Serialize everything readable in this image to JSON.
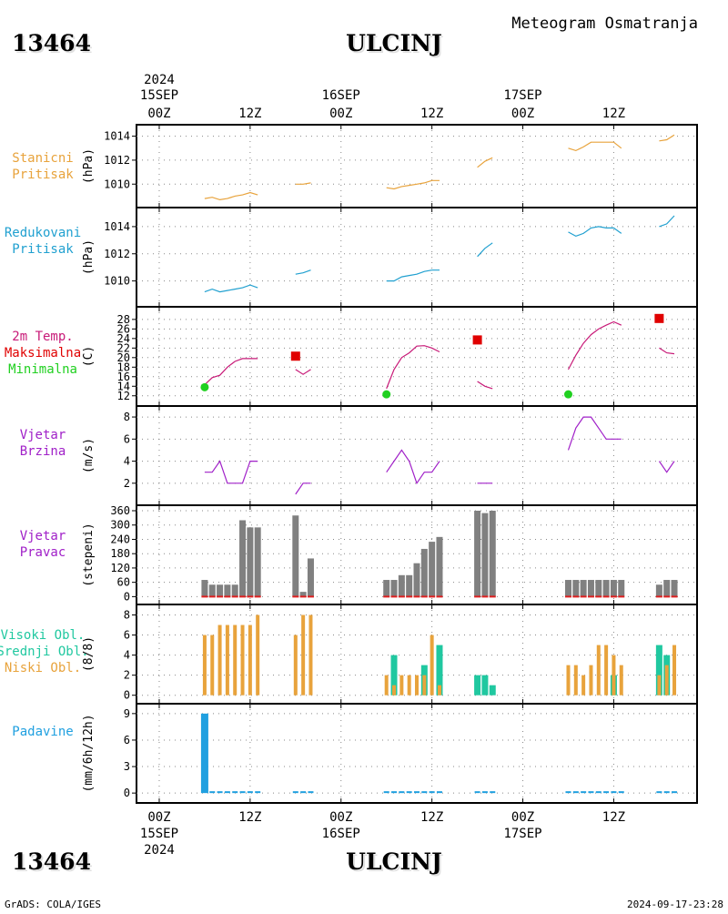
{
  "header": {
    "station_id": "13464",
    "station_name": "ULCINJ",
    "product": "Meteogram Osmatranja"
  },
  "footer": {
    "station_id": "13464",
    "station_name": "ULCINJ",
    "credit": "GrADS: COLA/IGES",
    "generated": "2024-09-17-23:28"
  },
  "time_axis": {
    "year": "2024",
    "ticks": [
      {
        "hour": 0,
        "label": "00Z",
        "date": "15SEP",
        "year": "2024"
      },
      {
        "hour": 12,
        "label": "12Z"
      },
      {
        "hour": 24,
        "label": "00Z",
        "date": "16SEP"
      },
      {
        "hour": 36,
        "label": "12Z"
      },
      {
        "hour": 48,
        "label": "00Z",
        "date": "17SEP"
      },
      {
        "hour": 60,
        "label": "12Z"
      }
    ],
    "range_hours": [
      -3,
      71
    ]
  },
  "colors": {
    "station_pressure": "#e8a33c",
    "reduced_pressure": "#20a0d0",
    "temperature": "#c81a78",
    "tmax": "#e00000",
    "tmin": "#20d020",
    "wind_speed": "#a020c8",
    "wind_dir_bar": "#808080",
    "wind_dir_base": "#e02020",
    "cloud_high": "#20c8a0",
    "cloud_mid": "#20c8a0",
    "cloud_low": "#e8a33c",
    "precip": "#20a0e0"
  },
  "chart_data": [
    {
      "id": "station_pressure",
      "type": "line",
      "label_lines": [
        "Stanicni",
        "Pritisak"
      ],
      "ylabel": "(hPa)",
      "ylim": [
        1008.5,
        1014.5
      ],
      "yticks": [
        1010,
        1012,
        1014
      ],
      "series": [
        {
          "segments": [
            [
              [
                6,
                1008.8
              ],
              [
                7,
                1008.9
              ],
              [
                8,
                1008.7
              ],
              [
                9,
                1008.8
              ],
              [
                10,
                1009.0
              ],
              [
                11,
                1009.1
              ],
              [
                12,
                1009.3
              ],
              [
                13,
                1009.1
              ]
            ],
            [
              [
                18,
                1010.0
              ],
              [
                19,
                1010.0
              ],
              [
                20,
                1010.1
              ]
            ],
            [
              [
                30,
                1009.7
              ],
              [
                31,
                1009.6
              ],
              [
                32,
                1009.8
              ],
              [
                33,
                1009.9
              ],
              [
                34,
                1010.0
              ],
              [
                35,
                1010.1
              ],
              [
                36,
                1010.3
              ],
              [
                37,
                1010.3
              ]
            ],
            [
              [
                42,
                1011.4
              ],
              [
                43,
                1011.9
              ],
              [
                44,
                1012.2
              ]
            ],
            [
              [
                54,
                1013.0
              ],
              [
                55,
                1012.8
              ],
              [
                56,
                1013.1
              ],
              [
                57,
                1013.5
              ],
              [
                58,
                1013.5
              ],
              [
                59,
                1013.5
              ],
              [
                60,
                1013.5
              ],
              [
                61,
                1013.0
              ]
            ],
            [
              [
                66,
                1013.6
              ],
              [
                67,
                1013.7
              ],
              [
                68,
                1014.1
              ]
            ]
          ]
        }
      ]
    },
    {
      "id": "reduced_pressure",
      "type": "line",
      "label_lines": [
        "Redukovani",
        "Pritisak"
      ],
      "ylabel": "(hPa)",
      "ylim": [
        1008.5,
        1015.0
      ],
      "yticks": [
        1010,
        1012,
        1014
      ],
      "series": [
        {
          "segments": [
            [
              [
                6,
                1009.2
              ],
              [
                7,
                1009.4
              ],
              [
                8,
                1009.2
              ],
              [
                9,
                1009.3
              ],
              [
                10,
                1009.4
              ],
              [
                11,
                1009.5
              ],
              [
                12,
                1009.7
              ],
              [
                13,
                1009.5
              ]
            ],
            [
              [
                18,
                1010.5
              ],
              [
                19,
                1010.6
              ],
              [
                20,
                1010.8
              ]
            ],
            [
              [
                30,
                1010.0
              ],
              [
                31,
                1010.0
              ],
              [
                32,
                1010.3
              ],
              [
                33,
                1010.4
              ],
              [
                34,
                1010.5
              ],
              [
                35,
                1010.7
              ],
              [
                36,
                1010.8
              ],
              [
                37,
                1010.8
              ]
            ],
            [
              [
                42,
                1011.8
              ],
              [
                43,
                1012.4
              ],
              [
                44,
                1012.8
              ]
            ],
            [
              [
                54,
                1013.6
              ],
              [
                55,
                1013.3
              ],
              [
                56,
                1013.5
              ],
              [
                57,
                1013.9
              ],
              [
                58,
                1014.0
              ],
              [
                59,
                1013.9
              ],
              [
                60,
                1013.9
              ],
              [
                61,
                1013.5
              ]
            ],
            [
              [
                66,
                1014.0
              ],
              [
                67,
                1014.2
              ],
              [
                68,
                1014.8
              ]
            ]
          ]
        }
      ]
    },
    {
      "id": "temperature",
      "type": "line",
      "label_lines": [
        "2m Temp.",
        "Maksimalna",
        "Minimalna"
      ],
      "ylabel": "(C)",
      "ylim": [
        11.0,
        29.5
      ],
      "yticks": [
        12,
        14,
        16,
        18,
        20,
        22,
        24,
        26,
        28
      ],
      "series": [
        {
          "segments": [
            [
              [
                6,
                14.3
              ],
              [
                7,
                15.8
              ],
              [
                8,
                16.3
              ],
              [
                9,
                18.0
              ],
              [
                10,
                19.2
              ],
              [
                11,
                19.8
              ],
              [
                12,
                19.8
              ],
              [
                13,
                19.8
              ]
            ],
            [
              [
                18,
                17.5
              ],
              [
                19,
                16.5
              ],
              [
                20,
                17.5
              ]
            ],
            [
              [
                30,
                13.5
              ],
              [
                31,
                17.5
              ],
              [
                32,
                20.0
              ],
              [
                33,
                21.0
              ],
              [
                34,
                22.4
              ],
              [
                35,
                22.5
              ],
              [
                36,
                22.0
              ],
              [
                37,
                21.2
              ]
            ],
            [
              [
                42,
                15.0
              ],
              [
                43,
                14.0
              ],
              [
                44,
                13.5
              ]
            ],
            [
              [
                54,
                17.5
              ],
              [
                55,
                20.5
              ],
              [
                56,
                23.0
              ],
              [
                57,
                24.8
              ],
              [
                58,
                26.0
              ],
              [
                59,
                26.8
              ],
              [
                60,
                27.5
              ],
              [
                61,
                26.8
              ]
            ],
            [
              [
                66,
                22.0
              ],
              [
                67,
                21.0
              ],
              [
                68,
                20.8
              ]
            ]
          ]
        }
      ],
      "tmax": [
        [
          18,
          20.3
        ],
        [
          42,
          23.7
        ],
        [
          66,
          28.2
        ]
      ],
      "tmin": [
        [
          6,
          13.8
        ],
        [
          30,
          12.3
        ],
        [
          54,
          12.3
        ]
      ]
    },
    {
      "id": "wind_speed",
      "type": "line",
      "label_lines": [
        "Vjetar",
        "Brzina"
      ],
      "ylabel": "(m/s)",
      "ylim": [
        0.5,
        8.5
      ],
      "yticks": [
        2,
        4,
        6,
        8
      ],
      "series": [
        {
          "segments": [
            [
              [
                6,
                3
              ],
              [
                7,
                3
              ],
              [
                8,
                4
              ],
              [
                9,
                2
              ],
              [
                10,
                2
              ],
              [
                11,
                2
              ],
              [
                12,
                4
              ],
              [
                13,
                4
              ]
            ],
            [
              [
                18,
                1
              ],
              [
                19,
                2
              ],
              [
                20,
                2
              ]
            ],
            [
              [
                30,
                3
              ],
              [
                31,
                4
              ],
              [
                32,
                5
              ],
              [
                33,
                4
              ],
              [
                34,
                2
              ],
              [
                35,
                3
              ],
              [
                36,
                3
              ],
              [
                37,
                4
              ]
            ],
            [
              [
                42,
                2
              ],
              [
                43,
                2
              ],
              [
                44,
                2
              ]
            ],
            [
              [
                54,
                5
              ],
              [
                55,
                7
              ],
              [
                56,
                8
              ],
              [
                57,
                8
              ],
              [
                58,
                7
              ],
              [
                59,
                6
              ],
              [
                60,
                6
              ],
              [
                61,
                6
              ]
            ],
            [
              [
                66,
                4
              ],
              [
                67,
                3
              ],
              [
                68,
                4
              ]
            ]
          ]
        }
      ]
    },
    {
      "id": "wind_direction",
      "type": "bar",
      "label_lines": [
        "Vjetar",
        "Pravac"
      ],
      "ylabel": "(stepeni)",
      "ylim": [
        -10,
        360
      ],
      "yticks": [
        0,
        60,
        120,
        180,
        240,
        300,
        360
      ],
      "hours": [
        6,
        7,
        8,
        9,
        10,
        11,
        12,
        13,
        18,
        19,
        20,
        30,
        31,
        32,
        33,
        34,
        35,
        36,
        37,
        42,
        43,
        44,
        54,
        55,
        56,
        57,
        58,
        59,
        60,
        61,
        66,
        67,
        68
      ],
      "values": [
        70,
        50,
        50,
        50,
        50,
        320,
        290,
        290,
        340,
        20,
        160,
        70,
        70,
        90,
        90,
        140,
        200,
        230,
        250,
        360,
        350,
        360,
        70,
        70,
        70,
        70,
        70,
        70,
        70,
        70,
        50,
        70,
        70
      ]
    },
    {
      "id": "clouds",
      "type": "bar",
      "label_lines": [
        "Visoki Obl.",
        "Srednji Obl.",
        "Niski Obl."
      ],
      "ylabel": "(8/8)",
      "ylim": [
        -0.3,
        8.5
      ],
      "yticks": [
        0,
        2,
        4,
        6,
        8
      ],
      "series": [
        {
          "name": "Visoki Obl.",
          "hours": [
            31,
            35,
            37,
            66
          ],
          "values": [
            4,
            3,
            5,
            5
          ]
        },
        {
          "name": "Srednji Obl.",
          "hours": [
            42,
            43,
            44,
            60,
            67
          ],
          "values": [
            2,
            2,
            1,
            2,
            4
          ]
        },
        {
          "name": "Niski Obl.",
          "hours": [
            6,
            7,
            8,
            9,
            10,
            11,
            12,
            13,
            18,
            19,
            20,
            30,
            31,
            32,
            33,
            34,
            35,
            36,
            37,
            54,
            55,
            56,
            57,
            58,
            59,
            60,
            61,
            66,
            67,
            68
          ],
          "values": [
            6,
            6,
            7,
            7,
            7,
            7,
            7,
            8,
            6,
            8,
            8,
            2,
            1,
            2,
            2,
            2,
            2,
            6,
            1,
            3,
            3,
            2,
            3,
            5,
            5,
            4,
            3,
            2,
            3,
            5
          ]
        }
      ]
    },
    {
      "id": "precipitation",
      "type": "bar",
      "label_lines": [
        "Padavine"
      ],
      "ylabel": "(mm/6h/12h)",
      "ylim": [
        -0.5,
        9.5
      ],
      "yticks": [
        0,
        3,
        6,
        9
      ],
      "hours": [
        6,
        7,
        8,
        9,
        10,
        11,
        12,
        13,
        18,
        19,
        20,
        30,
        31,
        32,
        33,
        34,
        35,
        36,
        37,
        42,
        43,
        44,
        54,
        55,
        56,
        57,
        58,
        59,
        60,
        61,
        66,
        67,
        68
      ],
      "values": [
        9,
        0.1,
        0.1,
        0.1,
        0.1,
        0.1,
        0.2,
        0.1,
        0.2,
        0.1,
        0.1,
        0.1,
        0.1,
        0.1,
        0.1,
        0.1,
        0.1,
        0.1,
        0.1,
        0.1,
        0.1,
        0.1,
        0.1,
        0.1,
        0.1,
        0.1,
        0.1,
        0.1,
        0.1,
        0.1,
        0.1,
        0.1,
        0.1
      ]
    }
  ]
}
